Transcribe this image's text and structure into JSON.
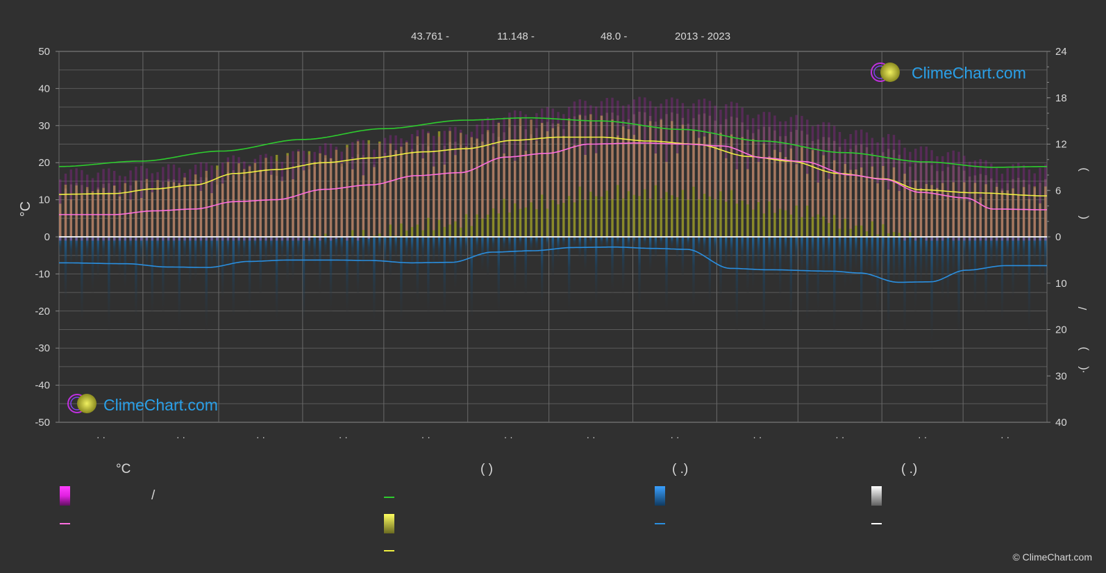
{
  "header": {
    "lat": "43.761 -",
    "lon": "11.148 -",
    "elev": "48.0 -",
    "years": "2013 - 2023"
  },
  "logo": {
    "text": "ClimeChart.com"
  },
  "copyright": "© ClimeChart.com",
  "legend": {
    "temp_header": "°C",
    "sun_header": "(           )",
    "rain_header": "(    .)",
    "snow_header": "(    .)",
    "temp_range_label": "/"
  },
  "colors": {
    "background": "#303030",
    "daylight": "#2ecc2e",
    "sunshine": "#f0f040",
    "sunshine_fill": "#a4a428",
    "temp_avg": "#ff6ee0",
    "temp_fill": "#d060b0",
    "temp_max_glow": "#c020c0",
    "rain": "#2a8fe0",
    "rain_fill": "#1c4a6e",
    "snow": "#ffffff"
  },
  "chart_data": {
    "type": "line",
    "month_labels": [
      "· ·",
      "· ·",
      "· ·",
      "· ·",
      "· ·",
      "· ·",
      "· ·",
      "· ·",
      "· ·",
      "· ·",
      "· ·",
      "· ·"
    ],
    "left_axis": {
      "label": "°C",
      "range": [
        -50,
        50
      ],
      "ticks": [
        50,
        40,
        30,
        20,
        10,
        0,
        -10,
        -20,
        -30,
        -40,
        -50
      ]
    },
    "right_axis_top": {
      "range": [
        0,
        24
      ],
      "ticks": [
        24,
        18,
        12,
        6,
        0
      ]
    },
    "right_axis_bottom": {
      "range": [
        0,
        40
      ],
      "ticks": [
        10,
        20,
        30,
        40
      ]
    },
    "right_axis_label_glyphs": [
      ")",
      "(",
      "/",
      ")",
      "(",
      "·"
    ],
    "grid": true,
    "x_days": [
      0,
      31,
      59,
      90,
      120,
      151,
      181,
      212,
      243,
      273,
      304,
      334,
      365
    ],
    "series": [
      {
        "key": "daylight_hours",
        "axis": "right_top",
        "points": [
          [
            0,
            9.1
          ],
          [
            30,
            9.8
          ],
          [
            60,
            11.1
          ],
          [
            90,
            12.6
          ],
          [
            120,
            14.0
          ],
          [
            150,
            15.1
          ],
          [
            173,
            15.4
          ],
          [
            200,
            15.0
          ],
          [
            230,
            13.9
          ],
          [
            260,
            12.4
          ],
          [
            290,
            10.9
          ],
          [
            320,
            9.7
          ],
          [
            345,
            9.0
          ],
          [
            365,
            9.1
          ]
        ]
      },
      {
        "key": "sunshine_hours",
        "axis": "right_top",
        "points": [
          [
            0,
            5.5
          ],
          [
            20,
            5.6
          ],
          [
            35,
            6.2
          ],
          [
            50,
            6.7
          ],
          [
            65,
            8.2
          ],
          [
            80,
            8.7
          ],
          [
            98,
            9.6
          ],
          [
            115,
            10.2
          ],
          [
            135,
            11.0
          ],
          [
            150,
            11.4
          ],
          [
            168,
            12.5
          ],
          [
            185,
            12.9
          ],
          [
            200,
            12.9
          ],
          [
            218,
            12.4
          ],
          [
            235,
            12.0
          ],
          [
            255,
            10.4
          ],
          [
            270,
            9.8
          ],
          [
            288,
            8.2
          ],
          [
            305,
            7.5
          ],
          [
            318,
            6.1
          ],
          [
            338,
            5.7
          ],
          [
            365,
            5.3
          ]
        ]
      },
      {
        "key": "temp_avg",
        "axis": "left",
        "points": [
          [
            0,
            6.0
          ],
          [
            20,
            6.0
          ],
          [
            35,
            7.0
          ],
          [
            50,
            7.5
          ],
          [
            65,
            9.5
          ],
          [
            80,
            10.0
          ],
          [
            98,
            12.8
          ],
          [
            115,
            14.0
          ],
          [
            132,
            16.5
          ],
          [
            148,
            17.3
          ],
          [
            165,
            21.5
          ],
          [
            180,
            22.5
          ],
          [
            196,
            25.0
          ],
          [
            215,
            25.3
          ],
          [
            232,
            25.0
          ],
          [
            245,
            24.5
          ],
          [
            260,
            21.3
          ],
          [
            275,
            20.3
          ],
          [
            292,
            16.7
          ],
          [
            305,
            15.5
          ],
          [
            318,
            12.0
          ],
          [
            335,
            10.5
          ],
          [
            345,
            7.5
          ],
          [
            365,
            7.3
          ]
        ]
      },
      {
        "key": "rain_mm",
        "axis": "right_bottom",
        "points": [
          [
            0,
            5.6
          ],
          [
            25,
            5.8
          ],
          [
            40,
            6.5
          ],
          [
            55,
            6.6
          ],
          [
            70,
            5.3
          ],
          [
            85,
            5.0
          ],
          [
            100,
            5.0
          ],
          [
            115,
            5.1
          ],
          [
            130,
            5.6
          ],
          [
            145,
            5.5
          ],
          [
            160,
            3.3
          ],
          [
            175,
            3.0
          ],
          [
            190,
            2.3
          ],
          [
            205,
            2.2
          ],
          [
            220,
            2.5
          ],
          [
            232,
            2.7
          ],
          [
            248,
            6.8
          ],
          [
            262,
            7.1
          ],
          [
            285,
            7.4
          ],
          [
            296,
            7.8
          ],
          [
            310,
            9.8
          ],
          [
            322,
            9.7
          ],
          [
            335,
            7.2
          ],
          [
            350,
            6.2
          ],
          [
            365,
            6.2
          ]
        ]
      }
    ]
  }
}
